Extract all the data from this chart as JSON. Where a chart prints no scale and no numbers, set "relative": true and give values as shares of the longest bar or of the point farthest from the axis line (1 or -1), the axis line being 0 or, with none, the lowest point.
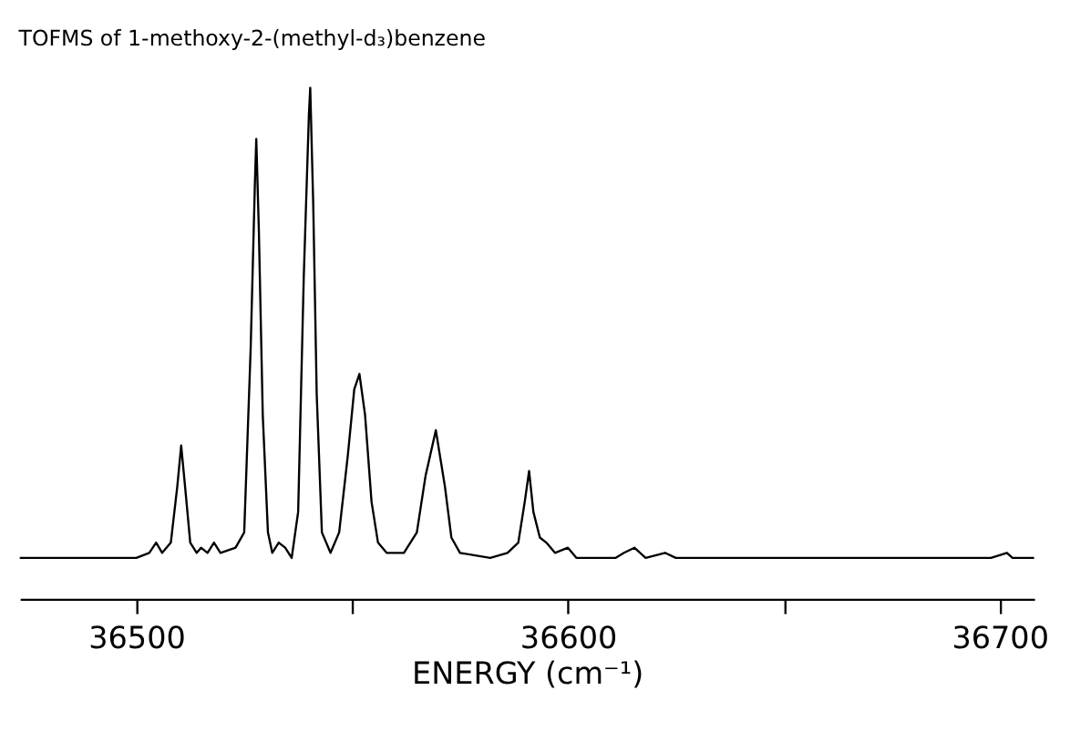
{
  "chart_data": {
    "type": "line",
    "title": "TOFMS of 1-methoxy-2-(methyl-d₃)benzene",
    "xlabel": "ENERGY (cm⁻¹)",
    "relative": true,
    "grid": false,
    "marker": "none",
    "line_style": "solid",
    "xlim": [
      36473,
      36708
    ],
    "xticks": [
      36500,
      {
        "value": 36550,
        "label": null
      },
      36600,
      {
        "value": 36650,
        "label": null
      },
      36700
    ],
    "series": [
      {
        "color": "#000000",
        "x": [
          36473,
          36480,
          36490,
          36500,
          36503,
          36504.6,
          36506,
          36508,
          36509.5,
          36510.4,
          36511.3,
          36512.5,
          36514,
          36515,
          36516.5,
          36518,
          36519.5,
          36523,
          36525,
          36526.5,
          36527.5,
          36527.8,
          36528.4,
          36529.3,
          36530.5,
          36531.5,
          36533,
          36534.5,
          36536,
          36537.5,
          36538.8,
          36540,
          36540.3,
          36541,
          36541.8,
          36543,
          36545,
          36547,
          36549,
          36550.5,
          36551.7,
          36553,
          36554.5,
          36556,
          36558,
          36562,
          36565,
          36567,
          36569.4,
          36571.5,
          36573,
          36575,
          36582,
          36586,
          36588.5,
          36590,
          36591,
          36592,
          36593.5,
          36595,
          36597,
          36600,
          36602,
          36606,
          36611,
          36613,
          36615.4,
          36618,
          36622.5,
          36625,
          36628,
          36640,
          36660,
          36680,
          36698,
          36701.7,
          36703,
          36708
        ],
        "values": [
          0.08,
          0.08,
          0.08,
          0.08,
          0.09,
          0.11,
          0.09,
          0.11,
          0.22,
          0.3,
          0.22,
          0.11,
          0.09,
          0.1,
          0.09,
          0.11,
          0.09,
          0.1,
          0.13,
          0.49,
          0.82,
          0.9,
          0.72,
          0.36,
          0.13,
          0.09,
          0.11,
          0.1,
          0.08,
          0.17,
          0.63,
          0.95,
          1.0,
          0.77,
          0.4,
          0.13,
          0.09,
          0.13,
          0.28,
          0.41,
          0.44,
          0.36,
          0.19,
          0.11,
          0.09,
          0.09,
          0.13,
          0.24,
          0.33,
          0.22,
          0.12,
          0.09,
          0.08,
          0.09,
          0.11,
          0.19,
          0.25,
          0.17,
          0.12,
          0.11,
          0.09,
          0.1,
          0.08,
          0.08,
          0.08,
          0.09,
          0.1,
          0.08,
          0.09,
          0.08,
          0.08,
          0.08,
          0.08,
          0.08,
          0.08,
          0.09,
          0.08,
          0.08
        ]
      }
    ]
  }
}
